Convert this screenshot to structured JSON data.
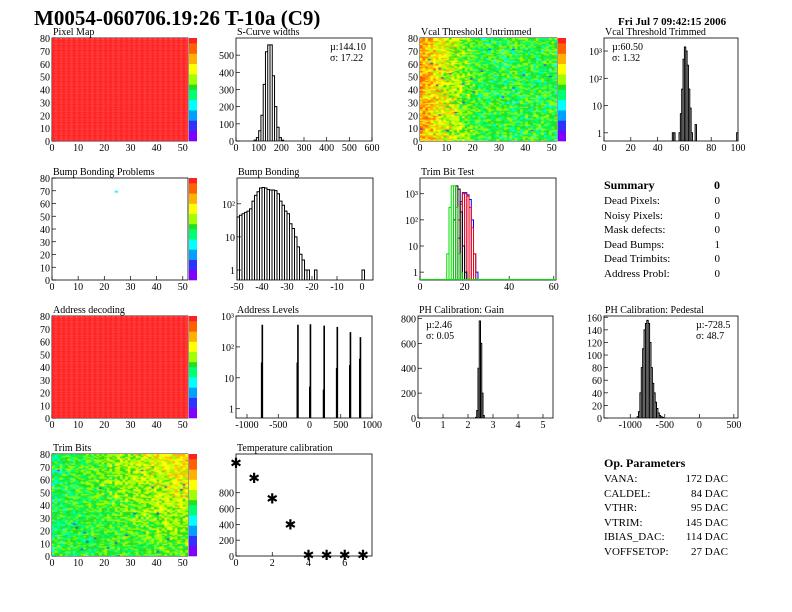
{
  "title": "M0054-060706.19:26 T-10a (C9)",
  "datestamp": "Fri Jul  7 09:42:15 2006",
  "palette": [
    "#7f00ff",
    "#3030ff",
    "#00a0ff",
    "#00ffff",
    "#00ff70",
    "#20e020",
    "#a0ff00",
    "#ffff00",
    "#ffb000",
    "#ff6000",
    "#ff2020"
  ],
  "summary": {
    "title": "Summary",
    "value": "0",
    "rows": [
      {
        "label": "Dead Pixels:",
        "value": "0"
      },
      {
        "label": "Noisy Pixels:",
        "value": "0"
      },
      {
        "label": "Mask defects:",
        "value": "0"
      },
      {
        "label": "Dead Bumps:",
        "value": "1"
      },
      {
        "label": "Dead Trimbits:",
        "value": "0"
      },
      {
        "label": "Address Probl:",
        "value": "0"
      }
    ]
  },
  "op_parameters": {
    "title": "Op. Parameters",
    "rows": [
      {
        "label": "VANA:",
        "value": "172 DAC"
      },
      {
        "label": "CALDEL:",
        "value": "84 DAC"
      },
      {
        "label": "VTHR:",
        "value": "95 DAC"
      },
      {
        "label": "VTRIM:",
        "value": "145 DAC"
      },
      {
        "label": "IBIAS_DAC:",
        "value": "114 DAC"
      },
      {
        "label": "VOFFSETOP:",
        "value": "27 DAC"
      }
    ]
  },
  "chart_data": [
    {
      "id": "pixel_map",
      "type": "heatmap",
      "title": "Pixel Map",
      "xlim": [
        0,
        52
      ],
      "ylim": [
        0,
        80
      ],
      "zlim": [
        0,
        10
      ],
      "xticks": [
        "0",
        "10",
        "20",
        "30",
        "40",
        "50"
      ],
      "yticks": [
        "0",
        "10",
        "20",
        "30",
        "40",
        "50",
        "60",
        "70",
        "80"
      ],
      "pattern": "uniform",
      "value": 10
    },
    {
      "id": "scurve",
      "type": "bar",
      "title": "S-Curve widths",
      "xlim": [
        0,
        600
      ],
      "ylim": [
        0,
        600
      ],
      "log": false,
      "xticks": [
        "0",
        "100",
        "200",
        "300",
        "400",
        "500",
        "600"
      ],
      "yticks": [
        "0",
        "100",
        "200",
        "300",
        "400",
        "500"
      ],
      "stats": [
        "µ:144.10",
        "σ: 17.22"
      ],
      "stats_pos": "top-right",
      "bin_width": 10,
      "series": [
        {
          "color": "#000000",
          "bins": [
            [
              80,
              5
            ],
            [
              90,
              20
            ],
            [
              100,
              60
            ],
            [
              110,
              150
            ],
            [
              120,
              330
            ],
            [
              130,
              520
            ],
            [
              140,
              560
            ],
            [
              150,
              560
            ],
            [
              160,
              380
            ],
            [
              170,
              200
            ],
            [
              180,
              80
            ],
            [
              190,
              20
            ],
            [
              200,
              5
            ]
          ]
        }
      ]
    },
    {
      "id": "vcal_untrimmed",
      "type": "heatmap",
      "title": "Vcal Threshold Untrimmed",
      "xlim": [
        0,
        52
      ],
      "ylim": [
        0,
        80
      ],
      "zlim": [
        85,
        120
      ],
      "xticks": [
        "0",
        "10",
        "20",
        "30",
        "40",
        "50"
      ],
      "yticks": [
        "0",
        "10",
        "20",
        "30",
        "40",
        "50",
        "60",
        "70",
        "80"
      ],
      "pattern": "gradient-left-high"
    },
    {
      "id": "vcal_trimmed",
      "type": "bar",
      "title": "Vcal Threshold Trimmed",
      "xlim": [
        0,
        100
      ],
      "ylim": [
        0.5,
        3000
      ],
      "log": true,
      "xticks": [
        "0",
        "20",
        "40",
        "60",
        "80",
        "100"
      ],
      "yticks": [
        "1",
        "10",
        "10²",
        "10³"
      ],
      "stats": [
        "µ:60.50",
        "σ: 1.32"
      ],
      "stats_pos": "top-left",
      "bin_width": 1,
      "series": [
        {
          "color": "#000000",
          "bins": [
            [
              51,
              1
            ],
            [
              52,
              1
            ],
            [
              56,
              1
            ],
            [
              57,
              5
            ],
            [
              58,
              40
            ],
            [
              59,
              500
            ],
            [
              60,
              1400
            ],
            [
              61,
              1000
            ],
            [
              62,
              300
            ],
            [
              63,
              40
            ],
            [
              64,
              8
            ],
            [
              65,
              1
            ],
            [
              68,
              2
            ],
            [
              99,
              1
            ]
          ]
        }
      ]
    },
    {
      "id": "bump_problems",
      "type": "heatmap",
      "title": "Bump Bonding Problems",
      "xlim": [
        0,
        52
      ],
      "ylim": [
        0,
        80
      ],
      "zlim": [
        0,
        2
      ],
      "xticks": [
        "0",
        "10",
        "20",
        "30",
        "40",
        "50"
      ],
      "yticks": [
        "0",
        "10",
        "20",
        "30",
        "40",
        "50",
        "60",
        "70",
        "80"
      ],
      "pattern": "sparse",
      "points": [
        [
          24,
          69,
          0.9
        ]
      ]
    },
    {
      "id": "bump_bonding",
      "type": "bar",
      "title": "Bump Bonding",
      "xlim": [
        -50,
        4.4
      ],
      "ylim": [
        0.5,
        600
      ],
      "log": true,
      "xticks": [
        "-50",
        "-40",
        "-30",
        "-20",
        "-10",
        "0"
      ],
      "yticks": [
        "1",
        "10",
        "10²"
      ],
      "bin_width": 1,
      "series": [
        {
          "color": "#000000",
          "bins": [
            [
              -50,
              40
            ],
            [
              -49,
              45
            ],
            [
              -48,
              50
            ],
            [
              -47,
              55
            ],
            [
              -46,
              60
            ],
            [
              -45,
              70
            ],
            [
              -44,
              120
            ],
            [
              -43,
              180
            ],
            [
              -42,
              230
            ],
            [
              -41,
              300
            ],
            [
              -40,
              310
            ],
            [
              -39,
              300
            ],
            [
              -38,
              270
            ],
            [
              -37,
              260
            ],
            [
              -36,
              260
            ],
            [
              -35,
              250
            ],
            [
              -34,
              200
            ],
            [
              -33,
              120
            ],
            [
              -32,
              90
            ],
            [
              -31,
              60
            ],
            [
              -30,
              50
            ],
            [
              -29,
              25
            ],
            [
              -28,
              18
            ],
            [
              -27,
              10
            ],
            [
              -26,
              5
            ],
            [
              -25,
              3
            ],
            [
              -24,
              2
            ],
            [
              -23,
              1
            ],
            [
              -22,
              1
            ],
            [
              -19,
              1
            ],
            [
              0,
              1
            ]
          ]
        }
      ]
    },
    {
      "id": "trim_bit_test",
      "type": "bar",
      "title": "Trim Bit Test",
      "xlim": [
        0,
        61
      ],
      "ylim": [
        0.5,
        4000
      ],
      "log": true,
      "xticks": [
        "0",
        "20",
        "40",
        "60"
      ],
      "yticks": [
        "1",
        "10",
        "10²",
        "10³"
      ],
      "bin_width": 1,
      "series": [
        {
          "color": "#0000ff",
          "bins": [
            [
              17,
              20
            ],
            [
              18,
              500
            ],
            [
              19,
              1100
            ],
            [
              20,
              1100
            ],
            [
              21,
              900
            ],
            [
              22,
              600
            ],
            [
              23,
              100
            ],
            [
              24,
              5
            ],
            [
              25,
              1
            ]
          ]
        },
        {
          "color": "#ff0000",
          "bins": [
            [
              17,
              100
            ],
            [
              18,
              400
            ],
            [
              19,
              1000
            ],
            [
              20,
              1000
            ],
            [
              21,
              800
            ],
            [
              22,
              300
            ],
            [
              23,
              50
            ],
            [
              24,
              5
            ]
          ]
        },
        {
          "color": "#000000",
          "bins": [
            [
              15,
              100
            ],
            [
              16,
              2000
            ],
            [
              17,
              1500
            ],
            [
              18,
              200
            ],
            [
              19,
              10
            ],
            [
              20,
              1
            ]
          ]
        },
        {
          "color": "#00dd00",
          "bins": [
            [
              12,
              5
            ],
            [
              13,
              300
            ],
            [
              14,
              2000
            ],
            [
              15,
              2000
            ],
            [
              16,
              300
            ],
            [
              17,
              5
            ],
            [
              18,
              1
            ]
          ]
        }
      ]
    },
    {
      "id": "address_decoding",
      "type": "heatmap",
      "title": "Address decoding",
      "xlim": [
        0,
        52
      ],
      "ylim": [
        0,
        80
      ],
      "zlim": [
        0,
        1
      ],
      "xticks": [
        "0",
        "10",
        "20",
        "30",
        "40",
        "50"
      ],
      "yticks": [
        "0",
        "10",
        "20",
        "30",
        "40",
        "50",
        "60",
        "70",
        "80"
      ],
      "pattern": "uniform",
      "value": 1
    },
    {
      "id": "address_levels",
      "type": "bar",
      "title": "Address Levels",
      "xlim": [
        -1176,
        1000
      ],
      "ylim": [
        0.5,
        1000
      ],
      "log": true,
      "xticks": [
        "-1000",
        "-500",
        "0",
        "500",
        "1000"
      ],
      "yticks": [
        "1",
        "10",
        "10²",
        "10³"
      ],
      "bin_width": 10,
      "series": [
        {
          "color": "#000000",
          "bins": [
            [
              -770,
              30
            ],
            [
              -760,
              500
            ],
            [
              -200,
              30
            ],
            [
              -190,
              500
            ],
            [
              0,
              5
            ],
            [
              10,
              520
            ],
            [
              220,
              4
            ],
            [
              230,
              470
            ],
            [
              430,
              20
            ],
            [
              440,
              430
            ],
            [
              640,
              25
            ],
            [
              650,
              290
            ],
            [
              800,
              40
            ],
            [
              810,
              200
            ]
          ]
        }
      ]
    },
    {
      "id": "ph_gain",
      "type": "bar",
      "title": "PH Calibration: Gain",
      "xlim": [
        0,
        5.4
      ],
      "ylim": [
        0,
        820
      ],
      "log": false,
      "xticks": [
        "0",
        "1",
        "2",
        "3",
        "4",
        "5"
      ],
      "yticks": [
        "0",
        "200",
        "400",
        "600",
        "800"
      ],
      "stats": [
        "µ:2.46",
        "σ: 0.05"
      ],
      "stats_pos": "top-left",
      "bin_width": 0.05,
      "series": [
        {
          "color": "#000000",
          "bins": [
            [
              2.3,
              5
            ],
            [
              2.35,
              60
            ],
            [
              2.4,
              400
            ],
            [
              2.45,
              780
            ],
            [
              2.5,
              600
            ],
            [
              2.55,
              200
            ],
            [
              2.6,
              20
            ]
          ]
        }
      ]
    },
    {
      "id": "ph_pedestal",
      "type": "bar",
      "title": "PH Calibration: Pedestal",
      "xlim": [
        -1380,
        560
      ],
      "ylim": [
        0,
        162
      ],
      "log": false,
      "xticks": [
        "-1000",
        "-500",
        "0",
        "500"
      ],
      "yticks": [
        "0",
        "20",
        "40",
        "60",
        "80",
        "100",
        "120",
        "140",
        "160"
      ],
      "stats": [
        "µ:-728.5",
        "σ: 48.7"
      ],
      "stats_pos": "top-right",
      "bin_width": 20,
      "series": [
        {
          "color": "#000000",
          "bins": [
            [
              -900,
              2
            ],
            [
              -880,
              10
            ],
            [
              -860,
              40
            ],
            [
              -840,
              80
            ],
            [
              -820,
              110
            ],
            [
              -800,
              140
            ],
            [
              -780,
              150
            ],
            [
              -760,
              155
            ],
            [
              -740,
              150
            ],
            [
              -720,
              120
            ],
            [
              -700,
              80
            ],
            [
              -680,
              55
            ],
            [
              -660,
              40
            ],
            [
              -640,
              25
            ],
            [
              -620,
              15
            ],
            [
              -600,
              8
            ],
            [
              -580,
              4
            ],
            [
              -560,
              2
            ],
            [
              -540,
              1
            ]
          ]
        }
      ]
    },
    {
      "id": "trim_bits",
      "type": "heatmap",
      "title": "Trim Bits",
      "xlim": [
        0,
        52
      ],
      "ylim": [
        0,
        80
      ],
      "zlim": [
        0,
        16
      ],
      "xticks": [
        "0",
        "10",
        "20",
        "30",
        "40",
        "50"
      ],
      "yticks": [
        "0",
        "10",
        "20",
        "30",
        "40",
        "50",
        "60",
        "70",
        "80"
      ],
      "pattern": "gradient-right-high"
    },
    {
      "id": "temperature_calibration",
      "type": "scatter",
      "title": "Temperature calibration",
      "xlim": [
        0,
        7.5
      ],
      "ylim": [
        0,
        1290
      ],
      "xticks": [
        "0",
        "2",
        "4",
        "6"
      ],
      "yticks": [
        "0",
        "200",
        "400",
        "600",
        "800"
      ],
      "x": [
        0,
        1,
        2,
        3,
        4,
        5,
        6,
        7
      ],
      "y": [
        1175,
        988,
        725,
        400,
        10,
        10,
        10,
        10
      ],
      "marker": "star"
    }
  ]
}
